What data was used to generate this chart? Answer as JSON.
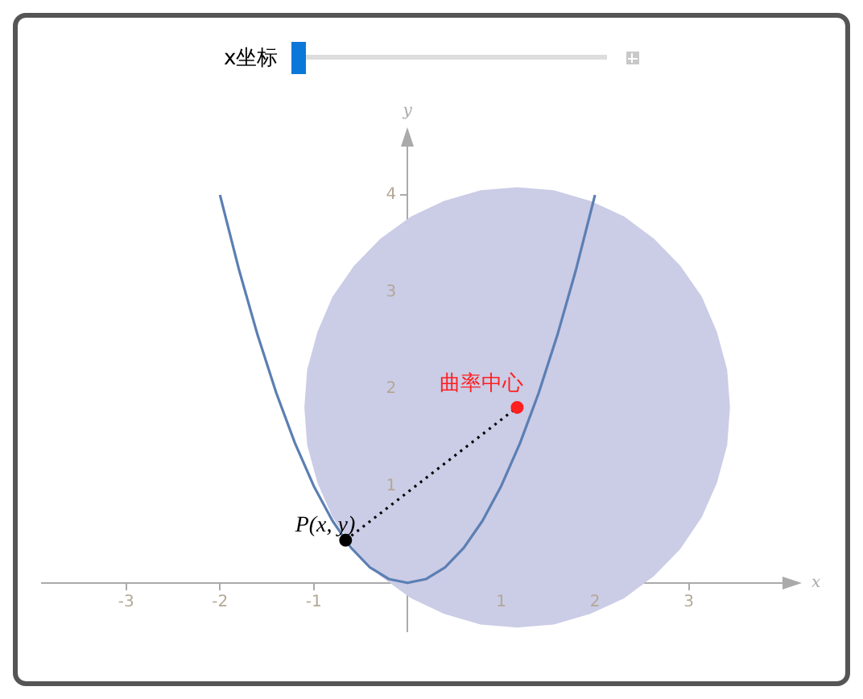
{
  "chart_data": {
    "type": "line",
    "xlabel": "x",
    "ylabel": "y",
    "xlim": [
      -3.9,
      4.0
    ],
    "ylim": [
      -0.5,
      4.5
    ],
    "xticks": [
      -3,
      -2,
      -1,
      1,
      2,
      3
    ],
    "yticks": [
      1,
      2,
      3,
      4
    ],
    "grid": false,
    "legend": false,
    "annotations": [
      "x坐标",
      {
        "text": "P(x, y)",
        "x": -0.66,
        "y": 0.44
      },
      {
        "text": "曲率中心",
        "x": 1.17,
        "y": 1.81
      }
    ],
    "series": [
      {
        "type": "area",
        "color": "#cbcce6",
        "x": [
          3.44,
          3.41,
          3.3,
          3.14,
          2.91,
          2.63,
          2.31,
          1.95,
          1.56,
          1.17,
          0.78,
          0.39,
          0.04,
          -0.29,
          -0.57,
          -0.8,
          -0.96,
          -1.07,
          -1.1,
          -1.07,
          -0.96,
          -0.8,
          -0.57,
          -0.29,
          0.04,
          0.39,
          0.78,
          1.17,
          1.56,
          1.95,
          2.31,
          2.63,
          2.91,
          3.14,
          3.3,
          3.41,
          3.44
        ],
        "values": [
          1.81,
          2.2,
          2.59,
          2.95,
          3.27,
          3.55,
          3.78,
          3.94,
          4.05,
          4.08,
          4.05,
          3.94,
          3.78,
          3.55,
          3.27,
          2.95,
          2.59,
          2.2,
          1.81,
          1.42,
          1.03,
          0.68,
          0.35,
          0.07,
          -0.16,
          -0.32,
          -0.43,
          -0.46,
          -0.43,
          -0.32,
          -0.16,
          0.07,
          0.35,
          0.68,
          1.03,
          1.42,
          1.81
        ]
      },
      {
        "type": "line",
        "color": "#5b7fb3",
        "x": [
          -2,
          -1.8,
          -1.6,
          -1.4,
          -1.2,
          -1,
          -0.8,
          -0.6,
          -0.4,
          -0.2,
          0,
          0.2,
          0.4,
          0.6,
          0.8,
          1,
          1.2,
          1.4,
          1.6,
          1.8,
          2
        ],
        "values": [
          4,
          3.24,
          2.56,
          1.96,
          1.44,
          1,
          0.64,
          0.36,
          0.16,
          0.04,
          0,
          0.04,
          0.16,
          0.36,
          0.64,
          1,
          1.44,
          1.96,
          2.56,
          3.24,
          4
        ]
      },
      {
        "type": "line",
        "line_style": "dotted",
        "color": "#000000",
        "x": [
          -0.66,
          1.17
        ],
        "values": [
          0.44,
          1.81
        ]
      },
      {
        "type": "scatter",
        "marker": "circle",
        "color": "#000000",
        "x": [
          -0.66
        ],
        "values": [
          0.44
        ]
      },
      {
        "type": "scatter",
        "marker": "circle",
        "color": "#ff2020",
        "x": [
          1.17
        ],
        "values": [
          1.81
        ]
      }
    ]
  }
}
